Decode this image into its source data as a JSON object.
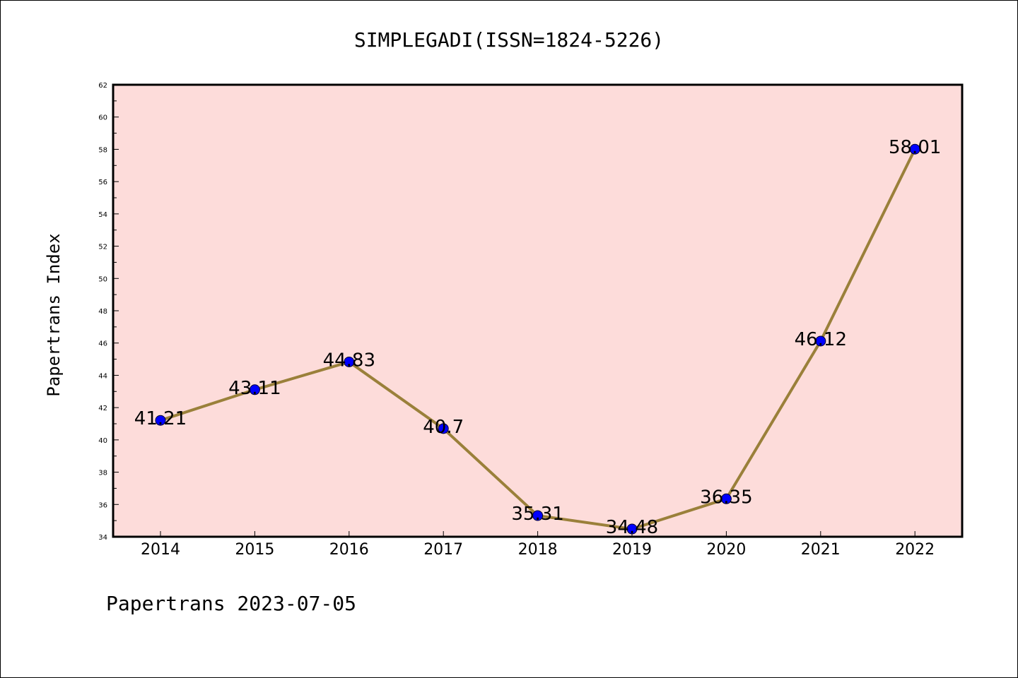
{
  "footer": "Papertrans 2023-07-05",
  "colors": {
    "plot_bg": "#fddcda",
    "line": "#9a803a",
    "marker": "#0000ff",
    "frame": "#000000"
  },
  "chart_data": {
    "type": "line",
    "title": "SIMPLEGADI(ISSN=1824-5226)",
    "xlabel": "",
    "ylabel": "Papertrans Index",
    "categories": [
      "2014",
      "2015",
      "2016",
      "2017",
      "2018",
      "2019",
      "2020",
      "2021",
      "2022"
    ],
    "series": [
      {
        "values": [
          41.21,
          43.11,
          44.83,
          40.7,
          35.31,
          34.48,
          36.35,
          46.12,
          58.01
        ],
        "labels": [
          "41.21",
          "43.11",
          "44.83",
          "40.7",
          "35.31",
          "34.48",
          "36.35",
          "46.12",
          "58.01"
        ]
      }
    ],
    "ylim": [
      34,
      62
    ],
    "yticks": [
      "34",
      "36",
      "38",
      "40",
      "42",
      "44",
      "46",
      "48",
      "50",
      "52",
      "54",
      "56",
      "58",
      "60",
      "62"
    ],
    "grid": false,
    "legend": "none"
  }
}
